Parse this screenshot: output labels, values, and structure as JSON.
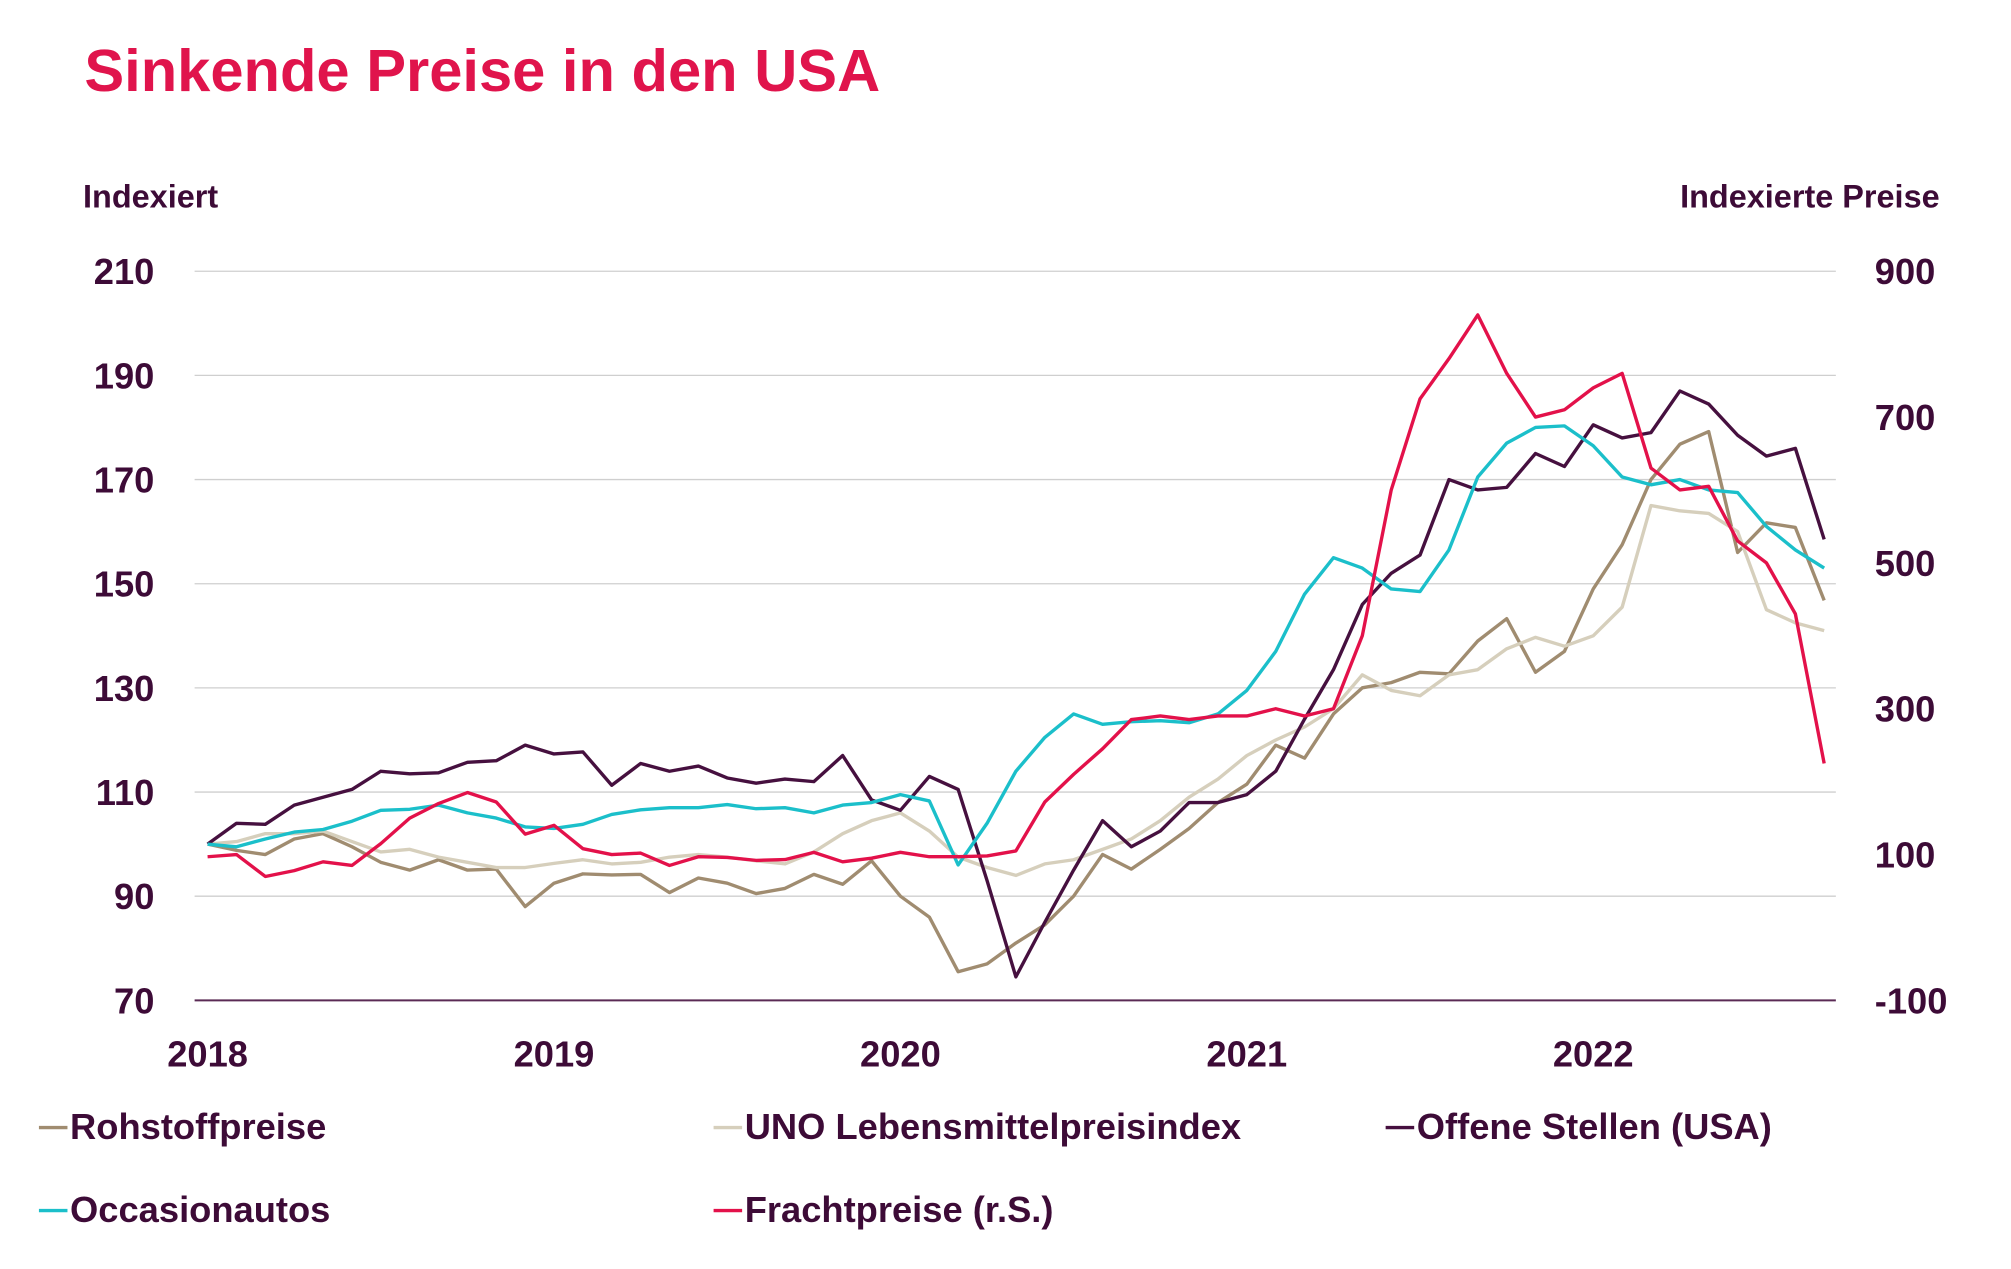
{
  "chart_data": {
    "type": "line",
    "title": "Sinkende Preise in den USA",
    "ylabel": "Indexiert",
    "ylabel_right": "Indexierte Preise",
    "ylim": [
      70,
      210
    ],
    "ylim_right": [
      -100,
      900
    ],
    "yticks": [
      "210",
      "190",
      "170",
      "150",
      "130",
      "110",
      "90",
      "70"
    ],
    "yticks_right": [
      "900",
      "700",
      "500",
      "300",
      "100",
      "-100"
    ],
    "xticks": [
      "2018",
      "2019",
      "2020",
      "2021",
      "2022"
    ],
    "x_start": "2018-01",
    "x_end": "2022-09",
    "x_frequency": "monthly",
    "grid": true,
    "legend_placement": "bottom",
    "colors": {
      "title": "#e0144c",
      "text": "#3d0b37",
      "grid": "#cfcfcf",
      "axis": "#5a2a55"
    },
    "series": [
      {
        "name": "Rohstoffpreise",
        "axis": "left",
        "color": "#a08c70",
        "values": [
          100,
          98.8,
          98,
          101,
          102,
          99.5,
          96.5,
          95,
          97,
          95,
          95.2,
          88,
          92.5,
          94.3,
          94.1,
          94.2,
          90.7,
          93.5,
          92.5,
          90.5,
          91.5,
          94.2,
          92.3,
          96.8,
          90,
          86,
          75.5,
          77,
          81,
          84.5,
          90,
          98,
          95.2,
          99,
          103,
          108,
          111.5,
          119,
          116.5,
          125,
          130,
          131,
          133,
          132.7,
          139,
          143.3,
          133,
          137,
          149,
          157.5,
          170,
          176.8,
          179.2,
          156,
          161.7,
          160.8,
          146.8
        ]
      },
      {
        "name": "UNO Lebensmittelpreisindex",
        "axis": "left",
        "color": "#d6cfbc",
        "values": [
          100,
          100.5,
          102,
          102,
          102.5,
          100.5,
          98.5,
          99,
          97.5,
          96.5,
          95.5,
          95.5,
          96.3,
          97,
          96.2,
          96.5,
          97.5,
          98,
          97.5,
          96.8,
          96.2,
          98.5,
          102,
          104.5,
          106,
          102.5,
          97.5,
          95.5,
          94,
          96.2,
          97,
          99,
          101,
          104.5,
          109,
          112.5,
          117,
          120,
          122.5,
          126,
          132.5,
          129.5,
          128.5,
          132.5,
          133.5,
          137.5,
          139.7,
          138,
          140,
          145.5,
          165,
          164,
          163.5,
          160,
          145,
          142.5,
          141
        ]
      },
      {
        "name": "Offene Stellen (USA)",
        "axis": "left",
        "color": "#46103f",
        "values": [
          100,
          104,
          103.8,
          107.5,
          109,
          110.5,
          114,
          113.5,
          113.7,
          115.7,
          116,
          119,
          117.3,
          117.7,
          111.3,
          115.5,
          114,
          115,
          112.7,
          111.7,
          112.5,
          112,
          117,
          108.5,
          106.5,
          113,
          110.5,
          93,
          74.5,
          85,
          95,
          104.5,
          99.5,
          102.5,
          108,
          108,
          109.5,
          114,
          124,
          133.5,
          146,
          152,
          155.5,
          170,
          168,
          168.5,
          175,
          172.5,
          180.5,
          178,
          179,
          187,
          184.5,
          178.5,
          174.5,
          176,
          158.5
        ]
      },
      {
        "name": "Occasionautos",
        "axis": "left",
        "color": "#1bbfca",
        "values": [
          100,
          99.5,
          101,
          102.3,
          102.8,
          104.4,
          106.5,
          106.7,
          107.5,
          106,
          105,
          103.3,
          103,
          103.8,
          105.7,
          106.6,
          107,
          107,
          107.6,
          106.8,
          107,
          106,
          107.5,
          108,
          109.5,
          108.3,
          96,
          104,
          114,
          120.5,
          125,
          123,
          123.5,
          123.7,
          123.3,
          125,
          129.5,
          137,
          148,
          155,
          153,
          149,
          148.5,
          156.5,
          170.5,
          177,
          180,
          180.3,
          176.5,
          170.5,
          169,
          170,
          168,
          167.5,
          161,
          156.5,
          153
        ]
      },
      {
        "name": "Frachtpreise (r.S.)",
        "axis": "right",
        "color": "#e3114a",
        "values": [
          97,
          100,
          70,
          78,
          90,
          85,
          115,
          150,
          170,
          185,
          172,
          128,
          140,
          108,
          100,
          102,
          85,
          97,
          96,
          92,
          93,
          103,
          90,
          95,
          103,
          97,
          97,
          98,
          105,
          172,
          210,
          245,
          285,
          290,
          285,
          290,
          290,
          300,
          290,
          300,
          400,
          600,
          725,
          780,
          840,
          760,
          700,
          710,
          740,
          760,
          630,
          600,
          605,
          530,
          500,
          430,
          225
        ]
      }
    ]
  }
}
